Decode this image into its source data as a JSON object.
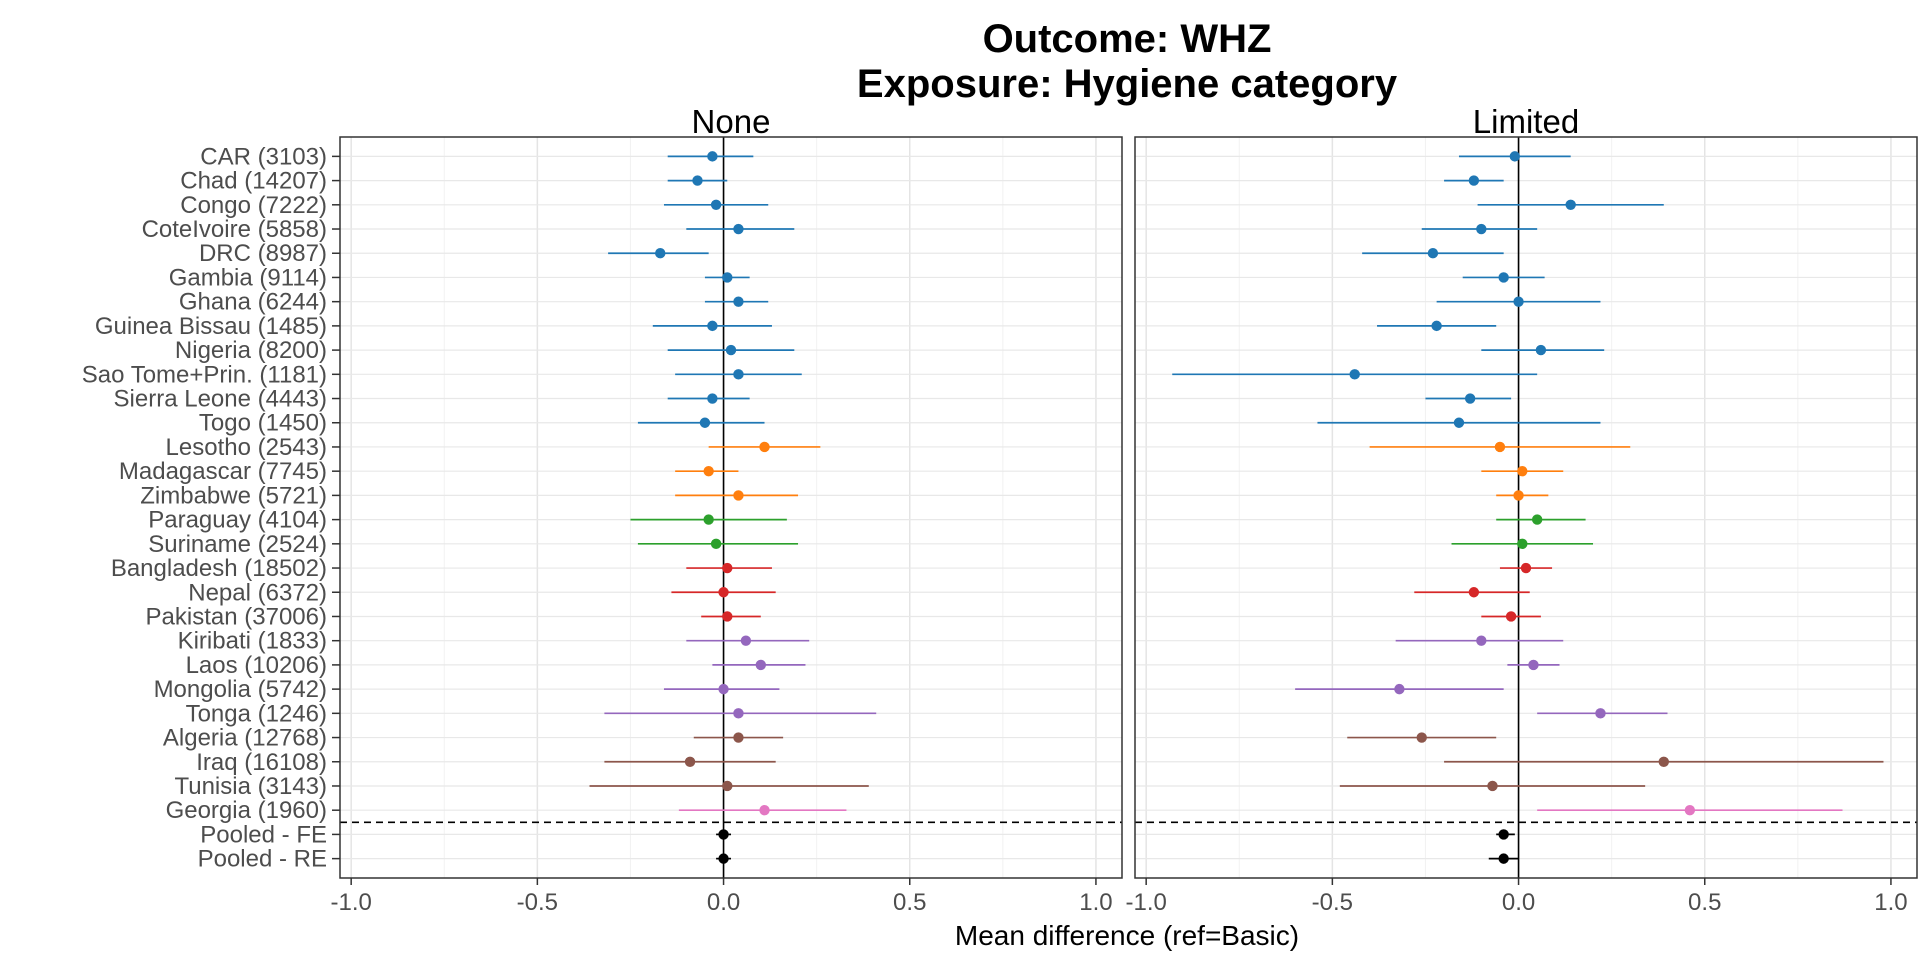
{
  "chart_data": {
    "type": "forest",
    "title": "Outcome: WHZ",
    "subtitle": "Exposure: Hygiene category",
    "xlabel": "Mean difference (ref=Basic)",
    "xlim": [
      -1.03,
      1.07
    ],
    "xticks": [
      -1.0,
      -0.5,
      0.0,
      0.5,
      1.0
    ],
    "xtick_labels": [
      "-1.0",
      "-0.5",
      "0.0",
      "0.5",
      "1.0"
    ],
    "reference_line": 0,
    "grid": true,
    "colors": {
      "blue": "#1f77b4",
      "orange": "#ff7f0e",
      "green": "#2ca02c",
      "red": "#d62728",
      "purple": "#9467bd",
      "brown": "#8c564b",
      "pink": "#e377c2",
      "black": "#000000"
    },
    "rows": [
      {
        "label": "CAR (3103)",
        "color": "blue"
      },
      {
        "label": "Chad (14207)",
        "color": "blue"
      },
      {
        "label": "Congo (7222)",
        "color": "blue"
      },
      {
        "label": "CoteIvoire (5858)",
        "color": "blue"
      },
      {
        "label": "DRC (8987)",
        "color": "blue"
      },
      {
        "label": "Gambia (9114)",
        "color": "blue"
      },
      {
        "label": "Ghana (6244)",
        "color": "blue"
      },
      {
        "label": "Guinea Bissau (1485)",
        "color": "blue"
      },
      {
        "label": "Nigeria (8200)",
        "color": "blue"
      },
      {
        "label": "Sao Tome+Prin. (1181)",
        "color": "blue"
      },
      {
        "label": "Sierra Leone (4443)",
        "color": "blue"
      },
      {
        "label": "Togo (1450)",
        "color": "blue"
      },
      {
        "label": "Lesotho (2543)",
        "color": "orange"
      },
      {
        "label": "Madagascar (7745)",
        "color": "orange"
      },
      {
        "label": "Zimbabwe (5721)",
        "color": "orange"
      },
      {
        "label": "Paraguay (4104)",
        "color": "green"
      },
      {
        "label": "Suriname (2524)",
        "color": "green"
      },
      {
        "label": "Bangladesh (18502)",
        "color": "red"
      },
      {
        "label": "Nepal (6372)",
        "color": "red"
      },
      {
        "label": "Pakistan (37006)",
        "color": "red"
      },
      {
        "label": "Kiribati (1833)",
        "color": "purple"
      },
      {
        "label": "Laos (10206)",
        "color": "purple"
      },
      {
        "label": "Mongolia (5742)",
        "color": "purple"
      },
      {
        "label": "Tonga (1246)",
        "color": "purple"
      },
      {
        "label": "Algeria (12768)",
        "color": "brown"
      },
      {
        "label": "Iraq (16108)",
        "color": "brown"
      },
      {
        "label": "Tunisia (3143)",
        "color": "brown"
      },
      {
        "label": "Georgia (1960)",
        "color": "pink"
      },
      {
        "label": "Pooled - FE",
        "color": "black"
      },
      {
        "label": "Pooled - RE",
        "color": "black"
      }
    ],
    "panels": [
      {
        "name": "None",
        "estimates": [
          {
            "est": -0.03,
            "lo": -0.15,
            "hi": 0.08
          },
          {
            "est": -0.07,
            "lo": -0.15,
            "hi": 0.01
          },
          {
            "est": -0.02,
            "lo": -0.16,
            "hi": 0.12
          },
          {
            "est": 0.04,
            "lo": -0.1,
            "hi": 0.19
          },
          {
            "est": -0.17,
            "lo": -0.31,
            "hi": -0.04
          },
          {
            "est": 0.01,
            "lo": -0.05,
            "hi": 0.07
          },
          {
            "est": 0.04,
            "lo": -0.05,
            "hi": 0.12
          },
          {
            "est": -0.03,
            "lo": -0.19,
            "hi": 0.13
          },
          {
            "est": 0.02,
            "lo": -0.15,
            "hi": 0.19
          },
          {
            "est": 0.04,
            "lo": -0.13,
            "hi": 0.21
          },
          {
            "est": -0.03,
            "lo": -0.15,
            "hi": 0.07
          },
          {
            "est": -0.05,
            "lo": -0.23,
            "hi": 0.11
          },
          {
            "est": 0.11,
            "lo": -0.04,
            "hi": 0.26
          },
          {
            "est": -0.04,
            "lo": -0.13,
            "hi": 0.04
          },
          {
            "est": 0.04,
            "lo": -0.13,
            "hi": 0.2
          },
          {
            "est": -0.04,
            "lo": -0.25,
            "hi": 0.17
          },
          {
            "est": -0.02,
            "lo": -0.23,
            "hi": 0.2
          },
          {
            "est": 0.01,
            "lo": -0.1,
            "hi": 0.13
          },
          {
            "est": 0.0,
            "lo": -0.14,
            "hi": 0.14
          },
          {
            "est": 0.01,
            "lo": -0.06,
            "hi": 0.1
          },
          {
            "est": 0.06,
            "lo": -0.1,
            "hi": 0.23
          },
          {
            "est": 0.1,
            "lo": -0.03,
            "hi": 0.22
          },
          {
            "est": 0.0,
            "lo": -0.16,
            "hi": 0.15
          },
          {
            "est": 0.04,
            "lo": -0.32,
            "hi": 0.41
          },
          {
            "est": 0.04,
            "lo": -0.08,
            "hi": 0.16
          },
          {
            "est": -0.09,
            "lo": -0.32,
            "hi": 0.14
          },
          {
            "est": 0.01,
            "lo": -0.36,
            "hi": 0.39
          },
          {
            "est": 0.11,
            "lo": -0.12,
            "hi": 0.33
          },
          {
            "est": 0.0,
            "lo": -0.02,
            "hi": 0.02
          },
          {
            "est": 0.0,
            "lo": -0.02,
            "hi": 0.02
          }
        ]
      },
      {
        "name": "Limited",
        "estimates": [
          {
            "est": -0.01,
            "lo": -0.16,
            "hi": 0.14
          },
          {
            "est": -0.12,
            "lo": -0.2,
            "hi": -0.04
          },
          {
            "est": 0.14,
            "lo": -0.11,
            "hi": 0.39
          },
          {
            "est": -0.1,
            "lo": -0.26,
            "hi": 0.05
          },
          {
            "est": -0.23,
            "lo": -0.42,
            "hi": -0.04
          },
          {
            "est": -0.04,
            "lo": -0.15,
            "hi": 0.07
          },
          {
            "est": 0.0,
            "lo": -0.22,
            "hi": 0.22
          },
          {
            "est": -0.22,
            "lo": -0.38,
            "hi": -0.06
          },
          {
            "est": 0.06,
            "lo": -0.1,
            "hi": 0.23
          },
          {
            "est": -0.44,
            "lo": -0.93,
            "hi": 0.05
          },
          {
            "est": -0.13,
            "lo": -0.25,
            "hi": -0.02
          },
          {
            "est": -0.16,
            "lo": -0.54,
            "hi": 0.22
          },
          {
            "est": -0.05,
            "lo": -0.4,
            "hi": 0.3
          },
          {
            "est": 0.01,
            "lo": -0.1,
            "hi": 0.12
          },
          {
            "est": 0.0,
            "lo": -0.06,
            "hi": 0.08
          },
          {
            "est": 0.05,
            "lo": -0.06,
            "hi": 0.18
          },
          {
            "est": 0.01,
            "lo": -0.18,
            "hi": 0.2
          },
          {
            "est": 0.02,
            "lo": -0.05,
            "hi": 0.09
          },
          {
            "est": -0.12,
            "lo": -0.28,
            "hi": 0.03
          },
          {
            "est": -0.02,
            "lo": -0.1,
            "hi": 0.06
          },
          {
            "est": -0.1,
            "lo": -0.33,
            "hi": 0.12
          },
          {
            "est": 0.04,
            "lo": -0.03,
            "hi": 0.11
          },
          {
            "est": -0.32,
            "lo": -0.6,
            "hi": -0.04
          },
          {
            "est": 0.22,
            "lo": 0.05,
            "hi": 0.4
          },
          {
            "est": -0.26,
            "lo": -0.46,
            "hi": -0.06
          },
          {
            "est": 0.39,
            "lo": -0.2,
            "hi": 0.98
          },
          {
            "est": -0.07,
            "lo": -0.48,
            "hi": 0.34
          },
          {
            "est": 0.46,
            "lo": 0.05,
            "hi": 0.87
          },
          {
            "est": -0.04,
            "lo": -0.06,
            "hi": -0.01
          },
          {
            "est": -0.04,
            "lo": -0.08,
            "hi": 0.0
          }
        ]
      }
    ]
  }
}
